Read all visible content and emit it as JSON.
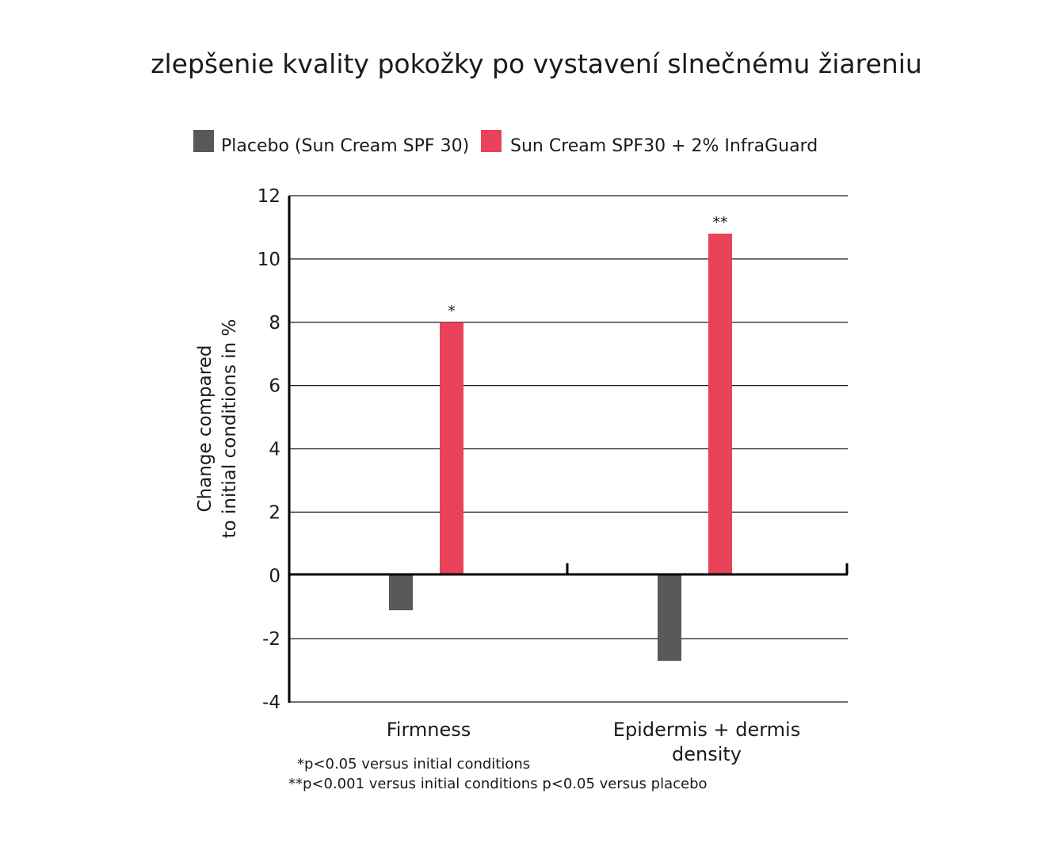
{
  "chart_data": {
    "type": "bar",
    "title": "zlepšenie kvality pokožky po vystavení slnečnému žiareniu",
    "ylabel_lines": [
      "Change compared",
      "to initial conditions in %"
    ],
    "ylim": [
      -4,
      12
    ],
    "yticks": [
      "12",
      "10",
      "8",
      "6",
      "4",
      "2",
      "0",
      "-2",
      "-4"
    ],
    "ytick_values": [
      12,
      10,
      8,
      6,
      4,
      2,
      0,
      -2,
      -4
    ],
    "grid": true,
    "legend_position": "top",
    "categories": [
      {
        "label_lines": [
          "Firmness"
        ]
      },
      {
        "label_lines": [
          "Epidermis + dermis",
          "density"
        ]
      }
    ],
    "series": [
      {
        "name": "Placebo (Sun Cream SPF 30)",
        "color": "#595959",
        "values": [
          -1.1,
          -2.7
        ]
      },
      {
        "name": "Sun Cream SPF30 + 2% InfraGuard",
        "color": "#e8435a",
        "values": [
          8.0,
          10.8
        ]
      }
    ],
    "annotations": [
      {
        "series": 1,
        "category": 0,
        "text": "*"
      },
      {
        "series": 1,
        "category": 1,
        "text": "**"
      }
    ],
    "footnotes": [
      "*p<0.05  versus initial conditions",
      "**p<0.001 versus initial conditions p<0.05 versus placebo"
    ]
  }
}
